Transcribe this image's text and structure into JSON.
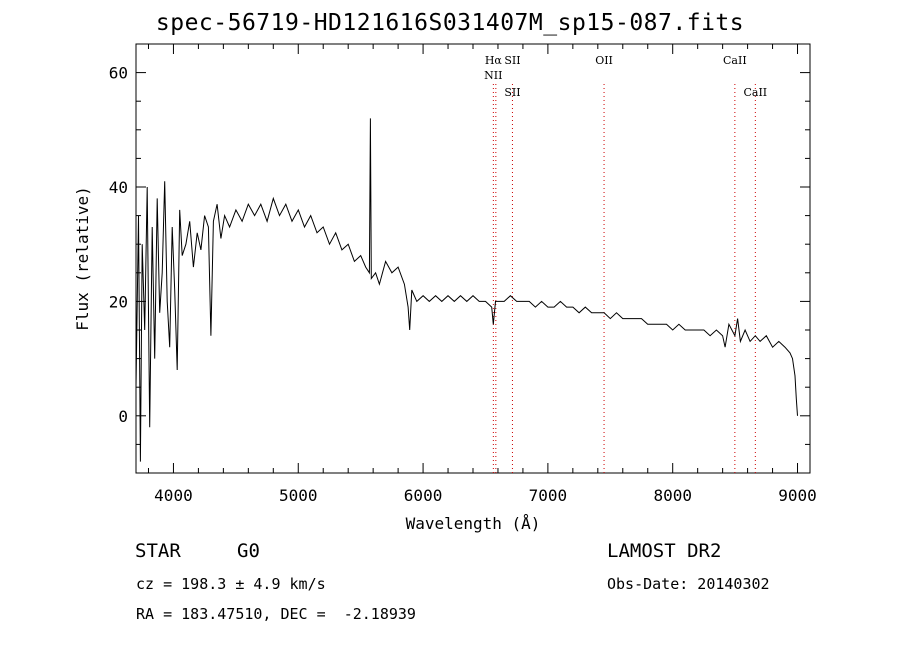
{
  "chart_data": {
    "type": "line",
    "title": "spec-56719-HD121616S031407M_sp15-087.fits",
    "xlabel": "Wavelength (Å)",
    "ylabel": "Flux (relative)",
    "xlim": [
      3700,
      9100
    ],
    "ylim": [
      -10,
      65
    ],
    "x_ticks": [
      4000,
      5000,
      6000,
      7000,
      8000,
      9000
    ],
    "y_ticks": [
      0,
      20,
      40,
      60
    ],
    "grid": false,
    "series": [
      {
        "color": "#000000",
        "points": [
          [
            3700,
            5
          ],
          [
            3720,
            35
          ],
          [
            3735,
            -8
          ],
          [
            3750,
            30
          ],
          [
            3770,
            15
          ],
          [
            3790,
            40
          ],
          [
            3810,
            -2
          ],
          [
            3830,
            33
          ],
          [
            3850,
            10
          ],
          [
            3870,
            38
          ],
          [
            3890,
            18
          ],
          [
            3910,
            25
          ],
          [
            3930,
            41
          ],
          [
            3950,
            20
          ],
          [
            3970,
            12
          ],
          [
            3990,
            33
          ],
          [
            4010,
            22
          ],
          [
            4030,
            8
          ],
          [
            4050,
            36
          ],
          [
            4070,
            28
          ],
          [
            4100,
            30
          ],
          [
            4130,
            34
          ],
          [
            4160,
            26
          ],
          [
            4190,
            32
          ],
          [
            4220,
            29
          ],
          [
            4250,
            35
          ],
          [
            4280,
            33
          ],
          [
            4300,
            14
          ],
          [
            4320,
            34
          ],
          [
            4350,
            37
          ],
          [
            4380,
            31
          ],
          [
            4410,
            35
          ],
          [
            4450,
            33
          ],
          [
            4500,
            36
          ],
          [
            4550,
            34
          ],
          [
            4600,
            37
          ],
          [
            4650,
            35
          ],
          [
            4700,
            37
          ],
          [
            4750,
            34
          ],
          [
            4800,
            38
          ],
          [
            4850,
            35
          ],
          [
            4900,
            37
          ],
          [
            4950,
            34
          ],
          [
            5000,
            36
          ],
          [
            5050,
            33
          ],
          [
            5100,
            35
          ],
          [
            5150,
            32
          ],
          [
            5200,
            33
          ],
          [
            5250,
            30
          ],
          [
            5300,
            32
          ],
          [
            5350,
            29
          ],
          [
            5400,
            30
          ],
          [
            5450,
            27
          ],
          [
            5500,
            28
          ],
          [
            5540,
            26
          ],
          [
            5570,
            25
          ],
          [
            5578,
            52
          ],
          [
            5585,
            24
          ],
          [
            5620,
            25
          ],
          [
            5650,
            23
          ],
          [
            5700,
            27
          ],
          [
            5750,
            25
          ],
          [
            5800,
            26
          ],
          [
            5850,
            23
          ],
          [
            5880,
            19
          ],
          [
            5893,
            15
          ],
          [
            5910,
            22
          ],
          [
            5950,
            20
          ],
          [
            6000,
            21
          ],
          [
            6050,
            20
          ],
          [
            6100,
            21
          ],
          [
            6150,
            20
          ],
          [
            6200,
            21
          ],
          [
            6250,
            20
          ],
          [
            6300,
            21
          ],
          [
            6350,
            20
          ],
          [
            6400,
            21
          ],
          [
            6450,
            20
          ],
          [
            6500,
            20
          ],
          [
            6550,
            19
          ],
          [
            6563,
            16
          ],
          [
            6580,
            20
          ],
          [
            6650,
            20
          ],
          [
            6700,
            21
          ],
          [
            6750,
            20
          ],
          [
            6800,
            20
          ],
          [
            6850,
            20
          ],
          [
            6900,
            19
          ],
          [
            6950,
            20
          ],
          [
            7000,
            19
          ],
          [
            7050,
            19
          ],
          [
            7100,
            20
          ],
          [
            7150,
            19
          ],
          [
            7200,
            19
          ],
          [
            7250,
            18
          ],
          [
            7300,
            19
          ],
          [
            7350,
            18
          ],
          [
            7400,
            18
          ],
          [
            7450,
            18
          ],
          [
            7500,
            17
          ],
          [
            7550,
            18
          ],
          [
            7600,
            17
          ],
          [
            7650,
            17
          ],
          [
            7700,
            17
          ],
          [
            7750,
            17
          ],
          [
            7800,
            16
          ],
          [
            7850,
            16
          ],
          [
            7900,
            16
          ],
          [
            7950,
            16
          ],
          [
            8000,
            15
          ],
          [
            8050,
            16
          ],
          [
            8100,
            15
          ],
          [
            8150,
            15
          ],
          [
            8200,
            15
          ],
          [
            8250,
            15
          ],
          [
            8300,
            14
          ],
          [
            8350,
            15
          ],
          [
            8400,
            14
          ],
          [
            8420,
            12
          ],
          [
            8450,
            16
          ],
          [
            8498,
            14
          ],
          [
            8520,
            17
          ],
          [
            8542,
            13
          ],
          [
            8580,
            15
          ],
          [
            8620,
            13
          ],
          [
            8662,
            14
          ],
          [
            8700,
            13
          ],
          [
            8750,
            14
          ],
          [
            8800,
            12
          ],
          [
            8850,
            13
          ],
          [
            8900,
            12
          ],
          [
            8940,
            11
          ],
          [
            8960,
            10
          ],
          [
            8980,
            7
          ],
          [
            8990,
            3
          ],
          [
            9000,
            0
          ]
        ]
      }
    ],
    "line_markers": [
      {
        "x": 6563,
        "labels": [
          "Hα",
          "NII"
        ],
        "color": "#cc0000"
      },
      {
        "x": 6583,
        "labels": [],
        "color": "#cc0000"
      },
      {
        "x": 6716,
        "labels": [
          "SII",
          "SII"
        ],
        "color": "#cc0000"
      },
      {
        "x": 7450,
        "labels": [
          "OII"
        ],
        "color": "#cc0000"
      },
      {
        "x": 8498,
        "labels": [
          "CaII"
        ],
        "color": "#cc0000"
      },
      {
        "x": 8662,
        "labels": [
          "CaII"
        ],
        "color": "#cc0000"
      }
    ]
  },
  "footer": {
    "object_class": "STAR",
    "subclass": "G0",
    "survey": "LAMOST DR2",
    "cz_text": "cz = 198.3 ± 4.9 km/s",
    "obs_date_text": "Obs-Date: 20140302",
    "coords_text": "RA = 183.47510, DEC =  -2.18939"
  }
}
